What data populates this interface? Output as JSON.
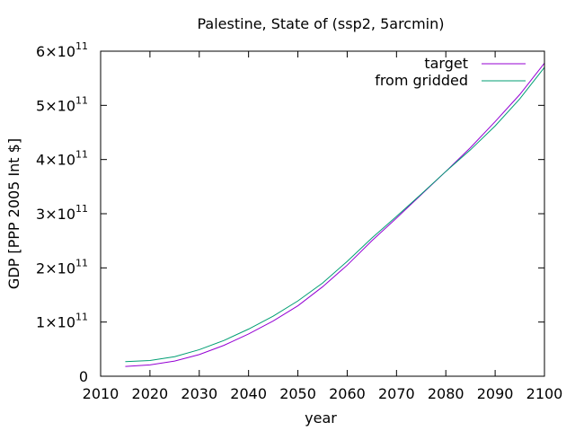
{
  "chart_data": {
    "type": "line",
    "title": "Palestine, State of (ssp2, 5arcmin)",
    "xlabel": "year",
    "ylabel": "GDP [PPP 2005 Int $]",
    "xlim": [
      2010,
      2100
    ],
    "ylim": [
      0,
      600000000000
    ],
    "x_ticks": [
      2010,
      2020,
      2030,
      2040,
      2050,
      2060,
      2070,
      2080,
      2090,
      2100
    ],
    "x_tick_labels": [
      "2010",
      "2020",
      "2030",
      "2040",
      "2050",
      "2060",
      "2070",
      "2080",
      "2090",
      "2100"
    ],
    "y_ticks": [
      0,
      100000000000,
      200000000000,
      300000000000,
      400000000000,
      500000000000,
      600000000000
    ],
    "y_tick_labels": [
      {
        "mantissa": "0",
        "base": "",
        "exp": ""
      },
      {
        "mantissa": "1",
        "base": "×10",
        "exp": "11"
      },
      {
        "mantissa": "2",
        "base": "×10",
        "exp": "11"
      },
      {
        "mantissa": "3",
        "base": "×10",
        "exp": "11"
      },
      {
        "mantissa": "4",
        "base": "×10",
        "exp": "11"
      },
      {
        "mantissa": "5",
        "base": "×10",
        "exp": "11"
      },
      {
        "mantissa": "6",
        "base": "×10",
        "exp": "11"
      }
    ],
    "grid": false,
    "legend_position": "top-right",
    "x": [
      2015,
      2020,
      2025,
      2030,
      2035,
      2040,
      2045,
      2050,
      2055,
      2060,
      2065,
      2070,
      2075,
      2080,
      2085,
      2090,
      2095,
      2100
    ],
    "series": [
      {
        "name": "target",
        "color": "#9400d3",
        "values": [
          18000000000,
          21000000000,
          28000000000,
          40000000000,
          57000000000,
          78000000000,
          102000000000,
          130000000000,
          165000000000,
          205000000000,
          250000000000,
          292000000000,
          335000000000,
          378000000000,
          422000000000,
          470000000000,
          520000000000,
          578000000000
        ]
      },
      {
        "name": "from gridded",
        "color": "#009e73",
        "values": [
          27000000000,
          29000000000,
          36000000000,
          49000000000,
          66000000000,
          87000000000,
          111000000000,
          139000000000,
          172000000000,
          212000000000,
          255000000000,
          295000000000,
          336000000000,
          378000000000,
          418000000000,
          462000000000,
          512000000000,
          570000000000
        ]
      }
    ]
  }
}
